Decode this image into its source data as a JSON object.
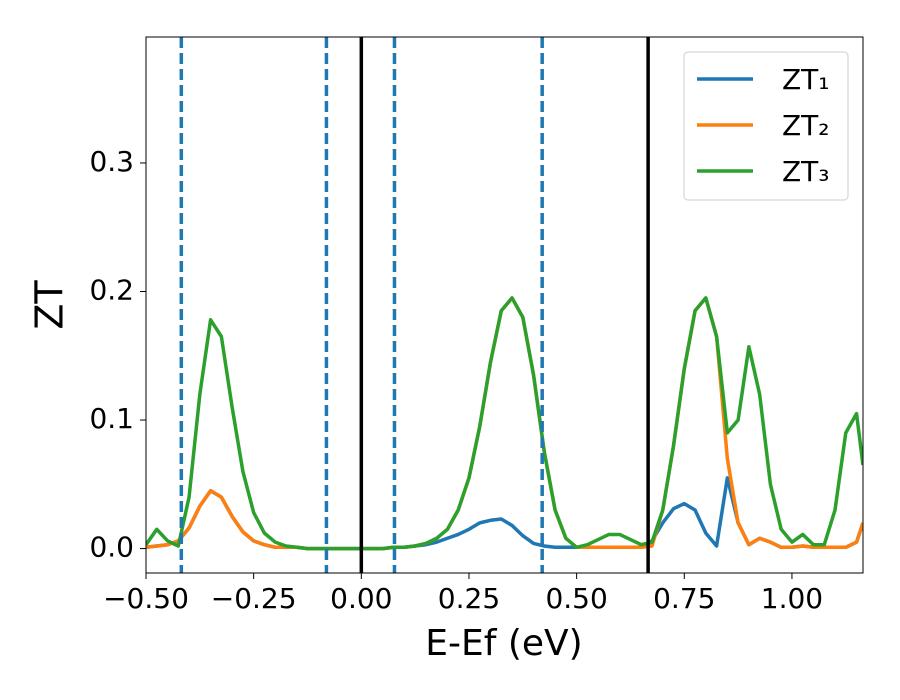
{
  "chart_data": {
    "type": "line",
    "x_label": "E-Ef (eV)",
    "y_label": "ZT",
    "xlim": [
      -0.5,
      1.165
    ],
    "ylim": [
      -0.019,
      0.398
    ],
    "xticks": [
      {
        "value": -0.5,
        "label": "−0.50"
      },
      {
        "value": -0.25,
        "label": "−0.25"
      },
      {
        "value": 0,
        "label": "0.00"
      },
      0.25,
      {
        "value": 0.5,
        "label": "0.50"
      },
      0.75,
      {
        "value": 1.0,
        "label": "1.00"
      }
    ],
    "yticks": [
      {
        "value": 0,
        "label": "0.0"
      },
      0.1,
      0.2,
      0.3
    ],
    "grid": false,
    "legend": "upper right",
    "vlines": [
      {
        "x": -0.418,
        "color": "#1f77b4",
        "style": "dashed"
      },
      {
        "x": -0.081,
        "color": "#1f77b4",
        "style": "dashed"
      },
      {
        "x": 0.077,
        "color": "#1f77b4",
        "style": "dashed"
      },
      {
        "x": 0.42,
        "color": "#1f77b4",
        "style": "dashed"
      },
      {
        "x": 0,
        "color": "#000000",
        "style": "solid"
      },
      {
        "x": 0.666,
        "color": "#000000",
        "style": "solid"
      }
    ],
    "x": [
      -0.5,
      -0.475,
      -0.45,
      -0.425,
      -0.4,
      -0.375,
      -0.35,
      -0.325,
      -0.3,
      -0.275,
      -0.25,
      -0.225,
      -0.2,
      -0.175,
      -0.15,
      -0.125,
      -0.1,
      -0.075,
      -0.05,
      -0.025,
      0,
      0.025,
      0.05,
      0.075,
      0.1,
      0.125,
      0.15,
      0.175,
      0.2,
      0.225,
      0.25,
      0.275,
      0.3,
      0.325,
      0.35,
      0.375,
      0.4,
      0.425,
      0.45,
      0.475,
      0.5,
      0.525,
      0.55,
      0.575,
      0.6,
      0.625,
      0.65,
      0.675,
      0.7,
      0.725,
      0.75,
      0.775,
      0.8,
      0.825,
      0.85,
      0.875,
      0.9,
      0.925,
      0.95,
      0.975,
      1.0,
      1.025,
      1.05,
      1.075,
      1.1,
      1.125,
      1.15,
      1.165
    ],
    "series": [
      {
        "name": "ZT₁",
        "color": "#1f77b4",
        "values": [
          0.001,
          0.002,
          0.003,
          0.006,
          0.016,
          0.033,
          0.045,
          0.04,
          0.025,
          0.013,
          0.006,
          0.003,
          0.001,
          0.001,
          0.001,
          0,
          0,
          0,
          0,
          0,
          0,
          0,
          0,
          0.001,
          0.001,
          0.002,
          0.003,
          0.005,
          0.008,
          0.011,
          0.015,
          0.02,
          0.022,
          0.023,
          0.018,
          0.01,
          0.004,
          0.002,
          0.001,
          0.001,
          0.001,
          0.001,
          0.001,
          0.001,
          0.001,
          0.001,
          0.001,
          0.006,
          0.02,
          0.031,
          0.035,
          0.03,
          0.012,
          0.002,
          0.055,
          0.02,
          0.003,
          0.008,
          0.005,
          0.001,
          0.001,
          0.002,
          0.001,
          0.001,
          0.001,
          0.001,
          0.005,
          0.02
        ]
      },
      {
        "name": "ZT₂",
        "color": "#ff7f0e",
        "values": [
          0.001,
          0.002,
          0.003,
          0.006,
          0.016,
          0.033,
          0.045,
          0.04,
          0.025,
          0.013,
          0.006,
          0.003,
          0.001,
          0.001,
          0.001,
          0,
          0,
          0,
          0,
          0,
          0,
          0,
          0,
          0.001,
          0.001,
          0.002,
          0.004,
          0.008,
          0.015,
          0.03,
          0.055,
          0.095,
          0.145,
          0.185,
          0.195,
          0.18,
          0.135,
          0.075,
          0.03,
          0.008,
          0.001,
          0.001,
          0.001,
          0.001,
          0.001,
          0.001,
          0.001,
          0.002,
          0.03,
          0.08,
          0.14,
          0.185,
          0.195,
          0.165,
          0.07,
          0.02,
          0.003,
          0.008,
          0.005,
          0.001,
          0.001,
          0.002,
          0.001,
          0.001,
          0.001,
          0.001,
          0.005,
          0.02
        ]
      },
      {
        "name": "ZT₃",
        "color": "#2ca02c",
        "values": [
          0.003,
          0.015,
          0.006,
          0.002,
          0.04,
          0.12,
          0.178,
          0.165,
          0.11,
          0.06,
          0.028,
          0.012,
          0.005,
          0.002,
          0.001,
          0,
          0,
          0,
          0,
          0,
          0,
          0,
          0,
          0.001,
          0.001,
          0.002,
          0.004,
          0.008,
          0.015,
          0.03,
          0.055,
          0.095,
          0.145,
          0.185,
          0.195,
          0.18,
          0.135,
          0.075,
          0.03,
          0.008,
          0.001,
          0.003,
          0.007,
          0.011,
          0.011,
          0.007,
          0.003,
          0.005,
          0.03,
          0.08,
          0.14,
          0.185,
          0.195,
          0.165,
          0.09,
          0.1,
          0.157,
          0.12,
          0.05,
          0.015,
          0.005,
          0.011,
          0.003,
          0.003,
          0.03,
          0.09,
          0.105,
          0.065
        ]
      }
    ]
  }
}
